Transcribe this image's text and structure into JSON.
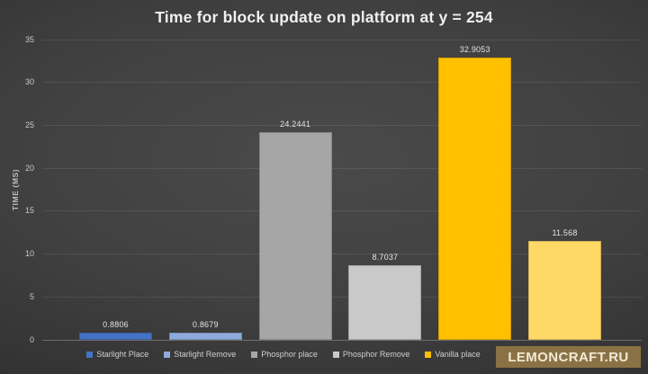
{
  "chart_data": {
    "type": "bar",
    "title": "Time for block update on platform at y = 254",
    "xlabel": "",
    "ylabel": "TIME (MS)",
    "ylim": [
      0,
      35
    ],
    "yticks": [
      0,
      5,
      10,
      15,
      20,
      25,
      30,
      35
    ],
    "grid": true,
    "legend_position": "bottom",
    "categories": [
      "Starlight Place",
      "Starlight Remove",
      "Phosphor place",
      "Phosphor Remove",
      "Vanilla place",
      ""
    ],
    "values": [
      0.8806,
      0.8679,
      24.2441,
      8.7037,
      32.9053,
      11.568
    ],
    "value_labels": [
      "0.8806",
      "0.8679",
      "24.2441",
      "8.7037",
      "32.9053",
      "11.568"
    ],
    "colors": [
      "#4472c4",
      "#8faadc",
      "#a6a6a6",
      "#c9c9c9",
      "#ffc000",
      "#ffd966"
    ]
  },
  "legend": {
    "items": [
      {
        "label": "Starlight Place",
        "color": "#4472c4",
        "obscured": false
      },
      {
        "label": "Starlight Remove",
        "color": "#8faadc",
        "obscured": false
      },
      {
        "label": "Phosphor place",
        "color": "#a6a6a6",
        "obscured": false
      },
      {
        "label": "Phosphor Remove",
        "color": "#c9c9c9",
        "obscured": false
      },
      {
        "label": "Vanilla place",
        "color": "#ffc000",
        "obscured": false
      },
      {
        "label": "",
        "color": "#ffd966",
        "obscured": true
      }
    ]
  },
  "watermark": {
    "text": "LEMONCRAFT.RU",
    "background": "#8b7245",
    "color": "#f2ead6"
  },
  "theme": {
    "background_center": "#4a4a4a",
    "background_edge": "#1d1d1d",
    "title_color": "#f0f0f0",
    "tick_color": "#c9c9c9"
  }
}
